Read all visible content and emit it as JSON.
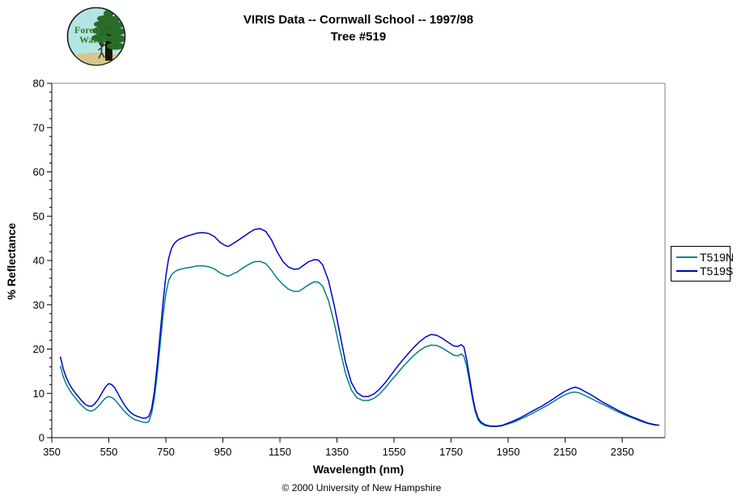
{
  "header": {
    "title_line1": "VIRIS Data -- Cornwall School -- 1997/98",
    "title_line2": "Tree #519",
    "logo": {
      "text_line1": "Forest",
      "text_line2": "Watch",
      "sky_color": "#b5e5e2",
      "ground_color": "#d6c78e",
      "tree_color": "#2a6b2a",
      "text_color": "#2e7d32"
    }
  },
  "footer": {
    "copyright": "© 2000 University of New Hampshire"
  },
  "chart_data": {
    "type": "line",
    "title": "VIRIS Data -- Cornwall School -- 1997/98",
    "subtitle": "Tree #519",
    "xlabel": "Wavelength (nm)",
    "ylabel": "% Reflectance",
    "xlim": [
      350,
      2500
    ],
    "ylim": [
      0,
      80
    ],
    "x_ticks": [
      350,
      550,
      750,
      950,
      1150,
      1350,
      1550,
      1750,
      1950,
      2150,
      2350
    ],
    "y_ticks": [
      0,
      10,
      20,
      30,
      40,
      50,
      60,
      70,
      80
    ],
    "y_minor_step": 2,
    "grid": false,
    "legend_position": "right-outside",
    "axis_color": "#000000",
    "frame_color": "#808080",
    "series": [
      {
        "name": "T519N",
        "color": "#008080",
        "points": [
          [
            380,
            16.2
          ],
          [
            390,
            13.8
          ],
          [
            400,
            12.2
          ],
          [
            410,
            11.0
          ],
          [
            420,
            10.0
          ],
          [
            430,
            9.2
          ],
          [
            440,
            8.4
          ],
          [
            450,
            7.6
          ],
          [
            460,
            7.0
          ],
          [
            470,
            6.4
          ],
          [
            480,
            6.1
          ],
          [
            490,
            6.0
          ],
          [
            500,
            6.3
          ],
          [
            510,
            6.9
          ],
          [
            520,
            7.6
          ],
          [
            530,
            8.4
          ],
          [
            540,
            9.0
          ],
          [
            550,
            9.3
          ],
          [
            560,
            9.1
          ],
          [
            570,
            8.6
          ],
          [
            580,
            7.9
          ],
          [
            590,
            7.1
          ],
          [
            600,
            6.3
          ],
          [
            610,
            5.6
          ],
          [
            620,
            5.0
          ],
          [
            630,
            4.5
          ],
          [
            640,
            4.1
          ],
          [
            650,
            3.9
          ],
          [
            660,
            3.7
          ],
          [
            670,
            3.5
          ],
          [
            680,
            3.4
          ],
          [
            690,
            3.6
          ],
          [
            700,
            5.5
          ],
          [
            710,
            9.0
          ],
          [
            720,
            14.5
          ],
          [
            730,
            21.0
          ],
          [
            740,
            27.5
          ],
          [
            750,
            32.5
          ],
          [
            760,
            35.5
          ],
          [
            770,
            36.8
          ],
          [
            780,
            37.4
          ],
          [
            790,
            37.8
          ],
          [
            800,
            38.0
          ],
          [
            820,
            38.3
          ],
          [
            840,
            38.5
          ],
          [
            860,
            38.8
          ],
          [
            880,
            38.8
          ],
          [
            900,
            38.6
          ],
          [
            920,
            38.1
          ],
          [
            940,
            37.2
          ],
          [
            960,
            36.6
          ],
          [
            970,
            36.5
          ],
          [
            980,
            36.8
          ],
          [
            1000,
            37.4
          ],
          [
            1020,
            38.3
          ],
          [
            1040,
            39.1
          ],
          [
            1060,
            39.7
          ],
          [
            1080,
            39.8
          ],
          [
            1100,
            39.3
          ],
          [
            1120,
            37.8
          ],
          [
            1140,
            36.0
          ],
          [
            1160,
            34.6
          ],
          [
            1180,
            33.5
          ],
          [
            1200,
            33.0
          ],
          [
            1215,
            33.0
          ],
          [
            1230,
            33.6
          ],
          [
            1250,
            34.5
          ],
          [
            1270,
            35.2
          ],
          [
            1285,
            35.1
          ],
          [
            1300,
            34.2
          ],
          [
            1320,
            31.0
          ],
          [
            1340,
            26.0
          ],
          [
            1360,
            20.0
          ],
          [
            1380,
            14.5
          ],
          [
            1400,
            10.8
          ],
          [
            1420,
            9.0
          ],
          [
            1440,
            8.4
          ],
          [
            1460,
            8.4
          ],
          [
            1480,
            8.9
          ],
          [
            1500,
            9.9
          ],
          [
            1520,
            11.3
          ],
          [
            1540,
            12.9
          ],
          [
            1560,
            14.4
          ],
          [
            1580,
            15.9
          ],
          [
            1600,
            17.3
          ],
          [
            1620,
            18.6
          ],
          [
            1640,
            19.7
          ],
          [
            1660,
            20.5
          ],
          [
            1680,
            20.9
          ],
          [
            1700,
            20.8
          ],
          [
            1720,
            20.2
          ],
          [
            1740,
            19.4
          ],
          [
            1760,
            18.6
          ],
          [
            1775,
            18.5
          ],
          [
            1785,
            18.9
          ],
          [
            1795,
            18.4
          ],
          [
            1805,
            16.0
          ],
          [
            1815,
            12.5
          ],
          [
            1825,
            8.8
          ],
          [
            1835,
            5.8
          ],
          [
            1845,
            4.0
          ],
          [
            1855,
            3.2
          ],
          [
            1870,
            2.7
          ],
          [
            1890,
            2.5
          ],
          [
            1910,
            2.5
          ],
          [
            1930,
            2.7
          ],
          [
            1950,
            3.1
          ],
          [
            1970,
            3.5
          ],
          [
            1990,
            4.1
          ],
          [
            2010,
            4.7
          ],
          [
            2030,
            5.3
          ],
          [
            2050,
            6.0
          ],
          [
            2070,
            6.7
          ],
          [
            2090,
            7.4
          ],
          [
            2110,
            8.2
          ],
          [
            2130,
            9.0
          ],
          [
            2150,
            9.7
          ],
          [
            2170,
            10.2
          ],
          [
            2185,
            10.3
          ],
          [
            2200,
            10.1
          ],
          [
            2220,
            9.5
          ],
          [
            2240,
            8.9
          ],
          [
            2260,
            8.2
          ],
          [
            2280,
            7.6
          ],
          [
            2300,
            7.0
          ],
          [
            2320,
            6.3
          ],
          [
            2340,
            5.7
          ],
          [
            2360,
            5.1
          ],
          [
            2380,
            4.6
          ],
          [
            2400,
            4.1
          ],
          [
            2420,
            3.6
          ],
          [
            2440,
            3.2
          ],
          [
            2460,
            2.9
          ],
          [
            2480,
            2.8
          ]
        ]
      },
      {
        "name": "T519S",
        "color": "#0000cc",
        "points": [
          [
            380,
            18.3
          ],
          [
            390,
            15.6
          ],
          [
            400,
            13.7
          ],
          [
            410,
            12.3
          ],
          [
            420,
            11.2
          ],
          [
            430,
            10.3
          ],
          [
            440,
            9.5
          ],
          [
            450,
            8.7
          ],
          [
            460,
            8.0
          ],
          [
            470,
            7.4
          ],
          [
            480,
            7.1
          ],
          [
            490,
            7.1
          ],
          [
            500,
            7.6
          ],
          [
            510,
            8.4
          ],
          [
            520,
            9.4
          ],
          [
            530,
            10.6
          ],
          [
            540,
            11.6
          ],
          [
            550,
            12.2
          ],
          [
            560,
            12.0
          ],
          [
            570,
            11.3
          ],
          [
            580,
            10.2
          ],
          [
            590,
            9.0
          ],
          [
            600,
            7.9
          ],
          [
            610,
            6.9
          ],
          [
            620,
            6.1
          ],
          [
            630,
            5.5
          ],
          [
            640,
            5.1
          ],
          [
            650,
            4.8
          ],
          [
            660,
            4.6
          ],
          [
            670,
            4.4
          ],
          [
            680,
            4.4
          ],
          [
            690,
            4.8
          ],
          [
            700,
            6.5
          ],
          [
            710,
            10.5
          ],
          [
            720,
            16.5
          ],
          [
            730,
            23.5
          ],
          [
            740,
            30.5
          ],
          [
            750,
            36.5
          ],
          [
            760,
            40.5
          ],
          [
            770,
            42.8
          ],
          [
            780,
            43.9
          ],
          [
            790,
            44.5
          ],
          [
            800,
            44.9
          ],
          [
            820,
            45.4
          ],
          [
            840,
            45.8
          ],
          [
            860,
            46.2
          ],
          [
            880,
            46.3
          ],
          [
            900,
            46.1
          ],
          [
            920,
            45.4
          ],
          [
            940,
            44.1
          ],
          [
            960,
            43.3
          ],
          [
            970,
            43.2
          ],
          [
            980,
            43.6
          ],
          [
            1000,
            44.4
          ],
          [
            1020,
            45.3
          ],
          [
            1040,
            46.2
          ],
          [
            1060,
            47.0
          ],
          [
            1080,
            47.2
          ],
          [
            1100,
            46.6
          ],
          [
            1120,
            44.7
          ],
          [
            1140,
            42.0
          ],
          [
            1160,
            39.8
          ],
          [
            1180,
            38.5
          ],
          [
            1200,
            38.0
          ],
          [
            1215,
            38.1
          ],
          [
            1230,
            38.8
          ],
          [
            1250,
            39.7
          ],
          [
            1270,
            40.2
          ],
          [
            1285,
            40.1
          ],
          [
            1300,
            39.0
          ],
          [
            1320,
            35.5
          ],
          [
            1340,
            30.0
          ],
          [
            1360,
            23.5
          ],
          [
            1380,
            17.0
          ],
          [
            1400,
            12.5
          ],
          [
            1420,
            10.2
          ],
          [
            1440,
            9.3
          ],
          [
            1460,
            9.3
          ],
          [
            1480,
            9.9
          ],
          [
            1500,
            11.0
          ],
          [
            1520,
            12.5
          ],
          [
            1540,
            14.2
          ],
          [
            1560,
            15.9
          ],
          [
            1580,
            17.5
          ],
          [
            1600,
            19.0
          ],
          [
            1620,
            20.4
          ],
          [
            1640,
            21.7
          ],
          [
            1660,
            22.7
          ],
          [
            1680,
            23.3
          ],
          [
            1700,
            23.1
          ],
          [
            1720,
            22.4
          ],
          [
            1740,
            21.5
          ],
          [
            1760,
            20.7
          ],
          [
            1775,
            20.6
          ],
          [
            1785,
            21.0
          ],
          [
            1795,
            20.5
          ],
          [
            1805,
            17.5
          ],
          [
            1815,
            13.5
          ],
          [
            1825,
            9.5
          ],
          [
            1835,
            6.3
          ],
          [
            1845,
            4.4
          ],
          [
            1855,
            3.5
          ],
          [
            1870,
            2.9
          ],
          [
            1890,
            2.6
          ],
          [
            1910,
            2.6
          ],
          [
            1930,
            2.8
          ],
          [
            1950,
            3.3
          ],
          [
            1970,
            3.8
          ],
          [
            1990,
            4.4
          ],
          [
            2010,
            5.1
          ],
          [
            2030,
            5.8
          ],
          [
            2050,
            6.5
          ],
          [
            2070,
            7.2
          ],
          [
            2090,
            8.0
          ],
          [
            2110,
            8.8
          ],
          [
            2130,
            9.7
          ],
          [
            2150,
            10.5
          ],
          [
            2170,
            11.1
          ],
          [
            2185,
            11.4
          ],
          [
            2200,
            11.1
          ],
          [
            2220,
            10.4
          ],
          [
            2240,
            9.7
          ],
          [
            2260,
            8.9
          ],
          [
            2280,
            8.1
          ],
          [
            2300,
            7.4
          ],
          [
            2320,
            6.7
          ],
          [
            2340,
            6.0
          ],
          [
            2360,
            5.4
          ],
          [
            2380,
            4.8
          ],
          [
            2400,
            4.3
          ],
          [
            2420,
            3.8
          ],
          [
            2440,
            3.3
          ],
          [
            2460,
            3.0
          ],
          [
            2480,
            2.8
          ]
        ]
      }
    ]
  }
}
